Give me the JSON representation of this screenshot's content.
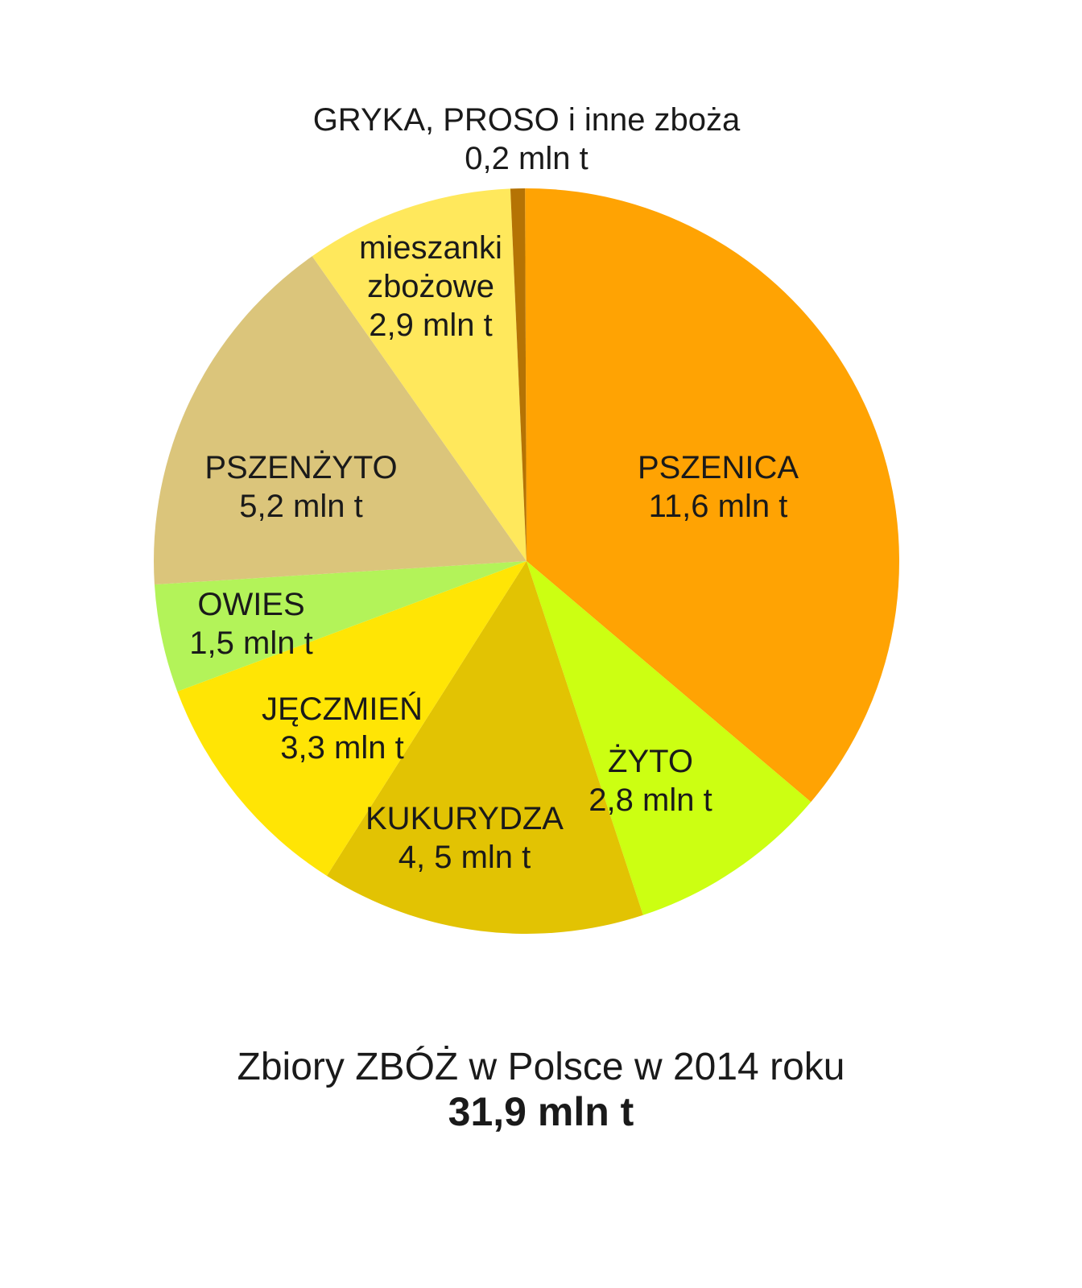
{
  "chart_data": {
    "type": "pie",
    "title": "Zbiory ZBÓŻ w Polsce w 2014 roku",
    "total_label": "31,9 mln t",
    "unit": "mln t",
    "start": "top",
    "direction": "clockwise",
    "slices": [
      {
        "name": "PSZENICA",
        "lines": [
          "PSZENICA",
          "11,6 mln t"
        ],
        "value": 11.6,
        "color": "#FFA303"
      },
      {
        "name": "ŻYTO",
        "lines": [
          "ŻYTO",
          "2,8 mln t"
        ],
        "value": 2.8,
        "color": "#CCFF12"
      },
      {
        "name": "KUKURYDZA",
        "lines": [
          "KUKURYDZA",
          "4, 5 mln t"
        ],
        "value": 4.5,
        "color": "#E2C303"
      },
      {
        "name": "JĘCZMIEŃ",
        "lines": [
          "JĘCZMIEŃ",
          "3,3 mln t"
        ],
        "value": 3.3,
        "color": "#FFE505"
      },
      {
        "name": "OWIES",
        "lines": [
          "OWIES",
          "1,5 mln t"
        ],
        "value": 1.5,
        "color": "#B3F359"
      },
      {
        "name": "PSZENŻYTO",
        "lines": [
          "PSZENŻYTO",
          "5,2 mln t"
        ],
        "value": 5.2,
        "color": "#DBC57B"
      },
      {
        "name": "mieszanki zbożowe",
        "lines": [
          "mieszanki",
          "zbożowe",
          "2,9 mln t"
        ],
        "value": 2.9,
        "color": "#FFE85C"
      },
      {
        "name": "GRYKA, PROSO i inne zboża",
        "lines": [
          "GRYKA, PROSO i inne zboża",
          "0,2 mln t"
        ],
        "value": 0.2,
        "color": "#B57304"
      }
    ]
  }
}
